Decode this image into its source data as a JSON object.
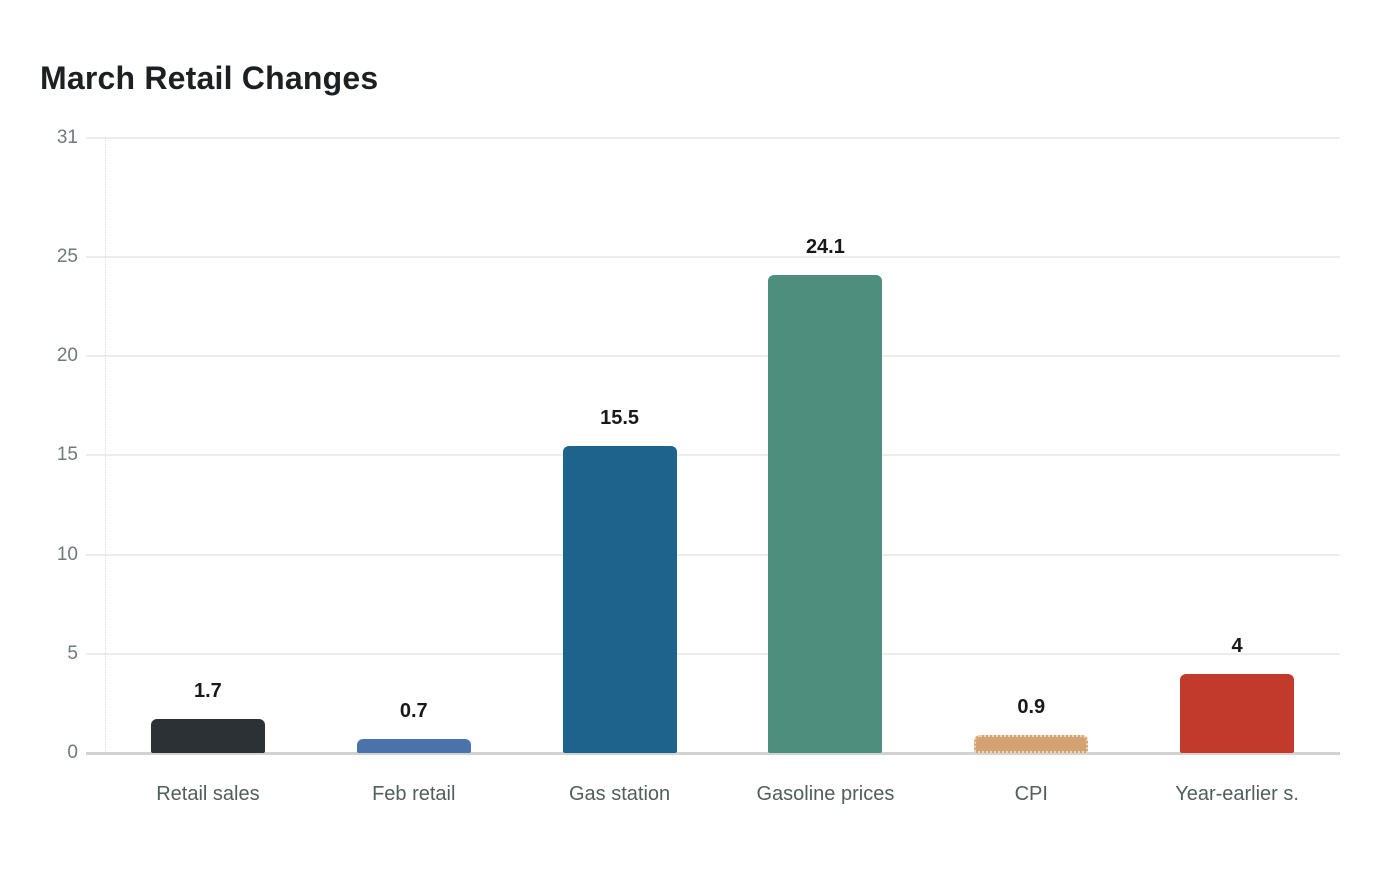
{
  "chart_data": {
    "type": "bar",
    "title": "March Retail Changes",
    "categories": [
      "Retail sales",
      "Feb retail",
      "Gas station",
      "Gasoline prices",
      "CPI",
      "Year-earlier s."
    ],
    "values": [
      1.7,
      0.7,
      15.5,
      24.1,
      0.9,
      4
    ],
    "value_labels": [
      "1.7",
      "0.7",
      "15.5",
      "24.1",
      "0.9",
      "4"
    ],
    "bar_colors": [
      "#2b3134",
      "#4a72ab",
      "#1e638c",
      "#4e8e7c",
      "#d2a273",
      "#c13a2b"
    ],
    "bar_borders": [
      null,
      null,
      null,
      null,
      "2px dotted #ecd9b8",
      null
    ],
    "xlabel": "",
    "ylabel": "",
    "ylim": [
      0,
      31
    ],
    "yticks": [
      0,
      5,
      10,
      15,
      20,
      25,
      31
    ],
    "grid": "horizontal",
    "legend": "none",
    "colors": {
      "background": "#ffffff",
      "title": "#1d2022",
      "grid": "#ececec",
      "baseline": "#d2d2d2",
      "axis_dash": "#d9d9d9",
      "tick_label": "#6e7a7b",
      "category_label": "#515e5b",
      "value_label": "#17191a"
    }
  }
}
